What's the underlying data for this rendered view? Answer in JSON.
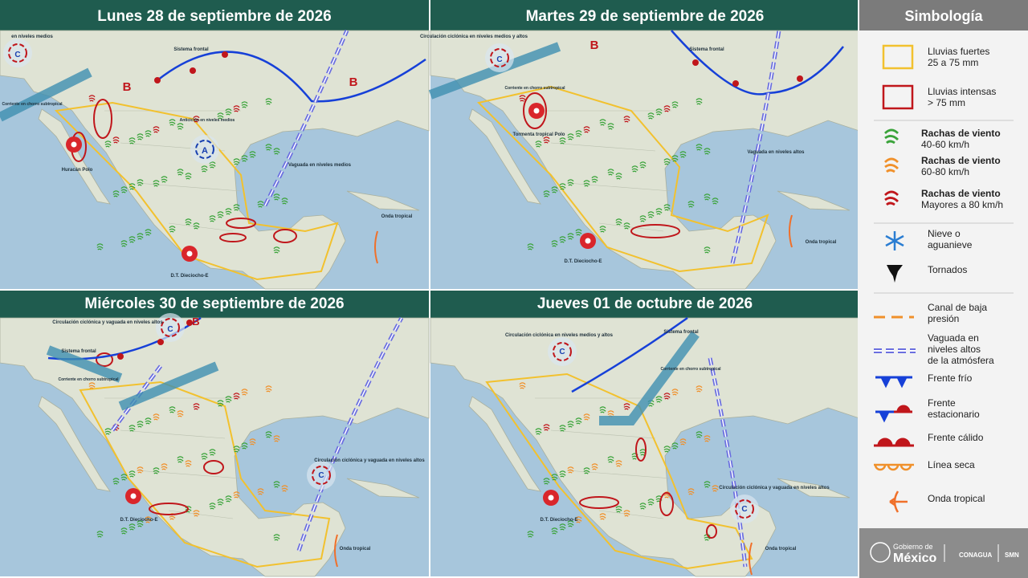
{
  "panels": [
    {
      "title": "Lunes 28 de septiembre de 2026",
      "labels": [
        "en niveles medios",
        "C",
        "Sistema frontal",
        "B",
        "B",
        "Corriente en chorro subtropical",
        "Anticiclón en niveles medios",
        "A",
        "Huracán Polo",
        "Vaguada en niveles medios",
        "Onda tropical",
        "D.T. Dieciocho-E"
      ]
    },
    {
      "title": "Martes 29 de septiembre de 2026",
      "labels": [
        "Circulación ciclónica en niveles medios y altos",
        "C",
        "Sistema frontal",
        "B",
        "Corriente en chorro subtropical",
        "Tormenta tropical Polo",
        "Vaguada en niveles altos",
        "Onda tropical",
        "D.T. Dieciocho-E"
      ]
    },
    {
      "title": "Miércoles 30 de septiembre de 2026",
      "labels": [
        "Circulación ciclónica y vaguada en niveles altos",
        "C",
        "B",
        "Sistema frontal",
        "Corriente en chorro subtropical",
        "Circulación ciclónica y vaguada en niveles altos",
        "C",
        "Onda tropical",
        "D.T. Dieciocho-E"
      ]
    },
    {
      "title": "Jueves 01 de octubre de 2026",
      "labels": [
        "Circulación ciclónica en niveles medios y altos",
        "C",
        "Sistema frontal",
        "Corriente en chorro subtropical",
        "Circulación ciclónica y vaguada en niveles altos",
        "C",
        "Onda tropical",
        "D.T. Dieciocho-E"
      ]
    }
  ],
  "legend": {
    "title": "Simbología",
    "items": [
      {
        "lines": [
          "Lluvias fuertes",
          "25 a 75 mm"
        ]
      },
      {
        "lines": [
          "Lluvias intensas",
          "> 75 mm"
        ]
      },
      {
        "lines": [
          "Rachas de viento",
          "40-60 km/h"
        ]
      },
      {
        "lines": [
          "Rachas de viento",
          "60-80 km/h"
        ]
      },
      {
        "lines": [
          "Rachas de viento",
          "Mayores a 80 km/h"
        ]
      },
      {
        "lines": [
          "Nieve o",
          "aguanieve"
        ]
      },
      {
        "lines": [
          "Tornados"
        ]
      },
      {
        "lines": [
          "Canal de baja",
          "presión"
        ]
      },
      {
        "lines": [
          "Vaguada en",
          "niveles altos",
          "de la atmósfera"
        ]
      },
      {
        "lines": [
          "Frente frío"
        ]
      },
      {
        "lines": [
          "Frente",
          "estacionario"
        ]
      },
      {
        "lines": [
          "Frente cálido"
        ]
      },
      {
        "lines": [
          "Línea seca"
        ]
      },
      {
        "lines": [
          "Onda tropical"
        ]
      }
    ]
  },
  "footer": {
    "gov1": "Gobierno de",
    "gov2": "México",
    "conagua": "CONAGUA",
    "smn": "SMN"
  }
}
